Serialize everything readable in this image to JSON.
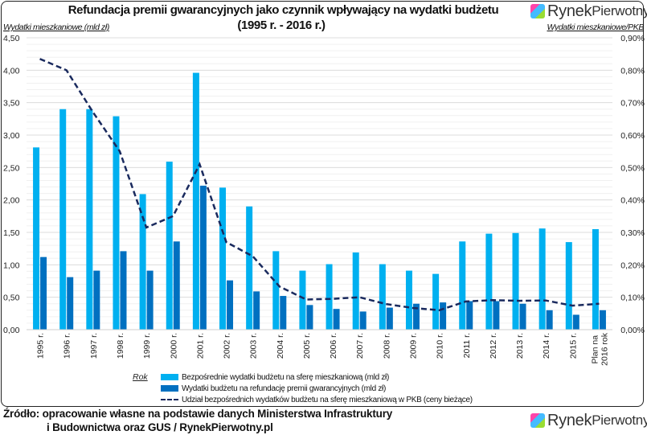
{
  "title_line1": "Refundacja premii gwarancyjnych jako czynnik wpływający na wydatki budżetu",
  "title_line2": "(1995 r. - 2016 r.)",
  "logo_text": [
    "Rynek",
    "Pierwotny"
  ],
  "source_line1": "Źródło: opracowanie własne na podstawie danych Ministerstwa Infrastruktury",
  "source_line2": "i Budownictwa oraz GUS / RynekPierwotny.pl",
  "colors": {
    "light": "#00b0f0",
    "dark": "#0070c0",
    "line": "#1a2a5e",
    "grid": "#e6e6e6"
  },
  "chart_data": {
    "type": "bar",
    "title": "Refundacja premii gwarancyjnych jako czynnik wpływający na wydatki budżetu (1995 r. - 2016 r.)",
    "xlabel": "Rok",
    "ylabel": "Wydatki mieszkaniowe (mld zł)",
    "y2label": "Wydatki mieszkaniowe/PKB",
    "ylim": [
      0,
      4.5
    ],
    "y2lim": [
      0,
      0.9
    ],
    "yticks": [
      "0,00",
      "0,50",
      "1,00",
      "1,50",
      "2,00",
      "2,50",
      "3,00",
      "3,50",
      "4,00",
      "4,50"
    ],
    "y2ticks": [
      "0,00%",
      "0,10%",
      "0,20%",
      "0,30%",
      "0,40%",
      "0,50%",
      "0,60%",
      "0,70%",
      "0,80%",
      "0,90%"
    ],
    "grid": true,
    "legend_position": "bottom",
    "categories": [
      "1995 r.",
      "1996 r.",
      "1997 r.",
      "1998 r.",
      "1999 r.",
      "2000 r.",
      "2001 r.",
      "2002 r.",
      "2003 r.",
      "2004 r.",
      "2005 r.",
      "2006 r.",
      "2007 r.",
      "2008 r.",
      "2009 r.",
      "2010 r.",
      "2011 r.",
      "2012 r.",
      "2013 r.",
      "2014 r.",
      "2015 r.",
      "Plan na 2016 rok"
    ],
    "series": [
      {
        "name": "Bezpośrednie wydatki budżetu na sferę mieszkaniową (mld zł)",
        "type": "bar",
        "axis": "left",
        "values": [
          2.81,
          3.4,
          3.4,
          3.29,
          2.09,
          2.59,
          3.96,
          2.19,
          1.9,
          1.21,
          0.91,
          1.01,
          1.19,
          1.01,
          0.91,
          0.86,
          1.36,
          1.48,
          1.49,
          1.56,
          1.35,
          1.55
        ]
      },
      {
        "name": "Wydatki budżetu na refundację premii gwarancyjnych (mld zł)",
        "type": "bar",
        "axis": "left",
        "values": [
          1.12,
          0.81,
          0.91,
          1.21,
          0.91,
          1.36,
          2.22,
          0.76,
          0.59,
          0.52,
          0.38,
          0.32,
          0.28,
          0.34,
          0.4,
          0.42,
          0.44,
          0.44,
          0.4,
          0.3,
          0.23,
          0.3
        ]
      },
      {
        "name": "Udział bezpośrednich wydatków budżetu na sferę mieszkaniową w PKB (ceny bieżące)",
        "type": "line",
        "axis": "right",
        "unit": "%",
        "values": [
          0.835,
          0.8,
          0.67,
          0.55,
          0.315,
          0.35,
          0.51,
          0.27,
          0.226,
          0.133,
          0.093,
          0.095,
          0.1,
          0.079,
          0.067,
          0.06,
          0.087,
          0.091,
          0.089,
          0.09,
          0.074,
          0.08
        ]
      }
    ]
  }
}
